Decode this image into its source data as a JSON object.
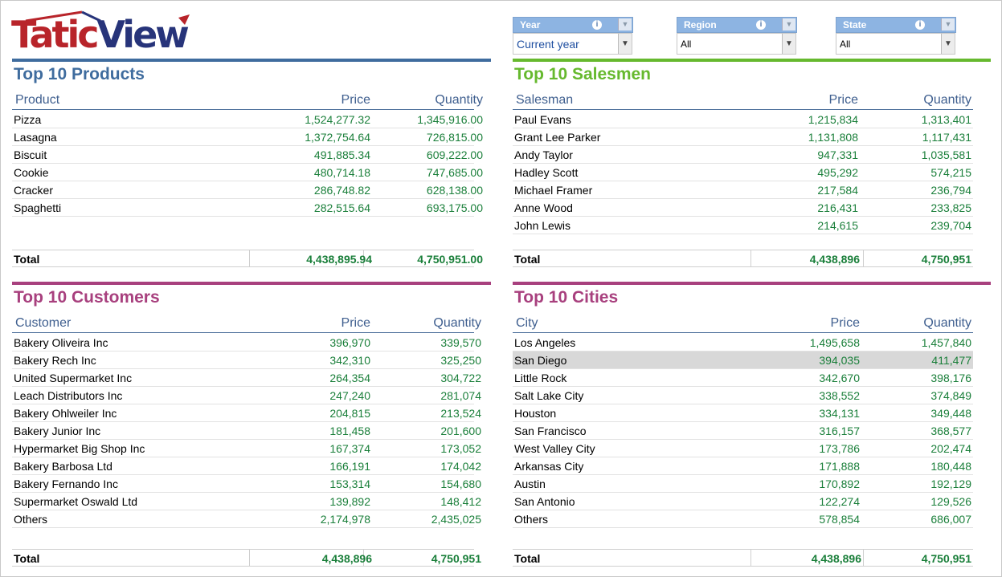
{
  "logo": {
    "part1": "Tatic",
    "part2": "View"
  },
  "filters": [
    {
      "label": "Year",
      "value": "Current year",
      "info_icon": "info-icon"
    },
    {
      "label": "Region",
      "value": "All",
      "info_icon": "info-icon"
    },
    {
      "label": "State",
      "value": "All",
      "info_icon": "info-icon"
    }
  ],
  "colors": {
    "products": "#3f6c9e",
    "salesmen": "#66b92e",
    "customers": "#a8407e",
    "cities": "#a8407e",
    "numbers": "#1a7f3a"
  },
  "products": {
    "title": "Top 10 Products",
    "headers": [
      "Product",
      "Price",
      "Quantity"
    ],
    "rows": [
      [
        "Pizza",
        "1,524,277.32",
        "1,345,916.00"
      ],
      [
        "Lasagna",
        "1,372,754.64",
        "726,815.00"
      ],
      [
        "Biscuit",
        "491,885.34",
        "609,222.00"
      ],
      [
        "Cookie",
        "480,714.18",
        "747,685.00"
      ],
      [
        "Cracker",
        "286,748.82",
        "628,138.00"
      ],
      [
        "Spaghetti",
        "282,515.64",
        "693,175.00"
      ]
    ],
    "total": [
      "Total",
      "4,438,895.94",
      "4,750,951.00"
    ]
  },
  "salesmen": {
    "title": "Top 10 Salesmen",
    "headers": [
      "Salesman",
      "Price",
      "Quantity"
    ],
    "rows": [
      [
        "Paul Evans",
        "1,215,834",
        "1,313,401"
      ],
      [
        "Grant Lee Parker",
        "1,131,808",
        "1,117,431"
      ],
      [
        "Andy Taylor",
        "947,331",
        "1,035,581"
      ],
      [
        "Hadley Scott",
        "495,292",
        "574,215"
      ],
      [
        "Michael Framer",
        "217,584",
        "236,794"
      ],
      [
        "Anne Wood",
        "216,431",
        "233,825"
      ],
      [
        "John Lewis",
        "214,615",
        "239,704"
      ]
    ],
    "total": [
      "Total",
      "4,438,896",
      "4,750,951"
    ]
  },
  "customers": {
    "title": "Top 10 Customers",
    "headers": [
      "Customer",
      "Price",
      "Quantity"
    ],
    "rows": [
      [
        "Bakery Oliveira Inc",
        "396,970",
        "339,570"
      ],
      [
        "Bakery Rech Inc",
        "342,310",
        "325,250"
      ],
      [
        "United Supermarket Inc",
        "264,354",
        "304,722"
      ],
      [
        "Leach Distributors Inc",
        "247,240",
        "281,074"
      ],
      [
        "Bakery Ohlweiler Inc",
        "204,815",
        "213,524"
      ],
      [
        "Bakery Junior Inc",
        "181,458",
        "201,600"
      ],
      [
        "Hypermarket Big Shop Inc",
        "167,374",
        "173,052"
      ],
      [
        "Bakery Barbosa Ltd",
        "166,191",
        "174,042"
      ],
      [
        "Bakery Fernando Inc",
        "153,314",
        "154,680"
      ],
      [
        "Supermarket Oswald Ltd",
        "139,892",
        "148,412"
      ],
      [
        "Others",
        "2,174,978",
        "2,435,025"
      ]
    ],
    "total": [
      "Total",
      "4,438,896",
      "4,750,951"
    ]
  },
  "cities": {
    "title": "Top 10 Cities",
    "headers": [
      "City",
      "Price",
      "Quantity"
    ],
    "rows": [
      [
        "Los Angeles",
        "1,495,658",
        "1,457,840"
      ],
      [
        "San Diego",
        "394,035",
        "411,477"
      ],
      [
        "Little Rock",
        "342,670",
        "398,176"
      ],
      [
        "Salt Lake City",
        "338,552",
        "374,849"
      ],
      [
        "Houston",
        "334,131",
        "349,448"
      ],
      [
        "San Francisco",
        "316,157",
        "368,577"
      ],
      [
        "West Valley City",
        "173,786",
        "202,474"
      ],
      [
        "Arkansas City",
        "171,888",
        "180,448"
      ],
      [
        "Austin",
        "170,892",
        "192,129"
      ],
      [
        "San Antonio",
        "122,274",
        "129,526"
      ],
      [
        "Others",
        "578,854",
        "686,007"
      ]
    ],
    "highlighted_row": 1,
    "total": [
      "Total",
      "4,438,896",
      "4,750,951"
    ]
  }
}
